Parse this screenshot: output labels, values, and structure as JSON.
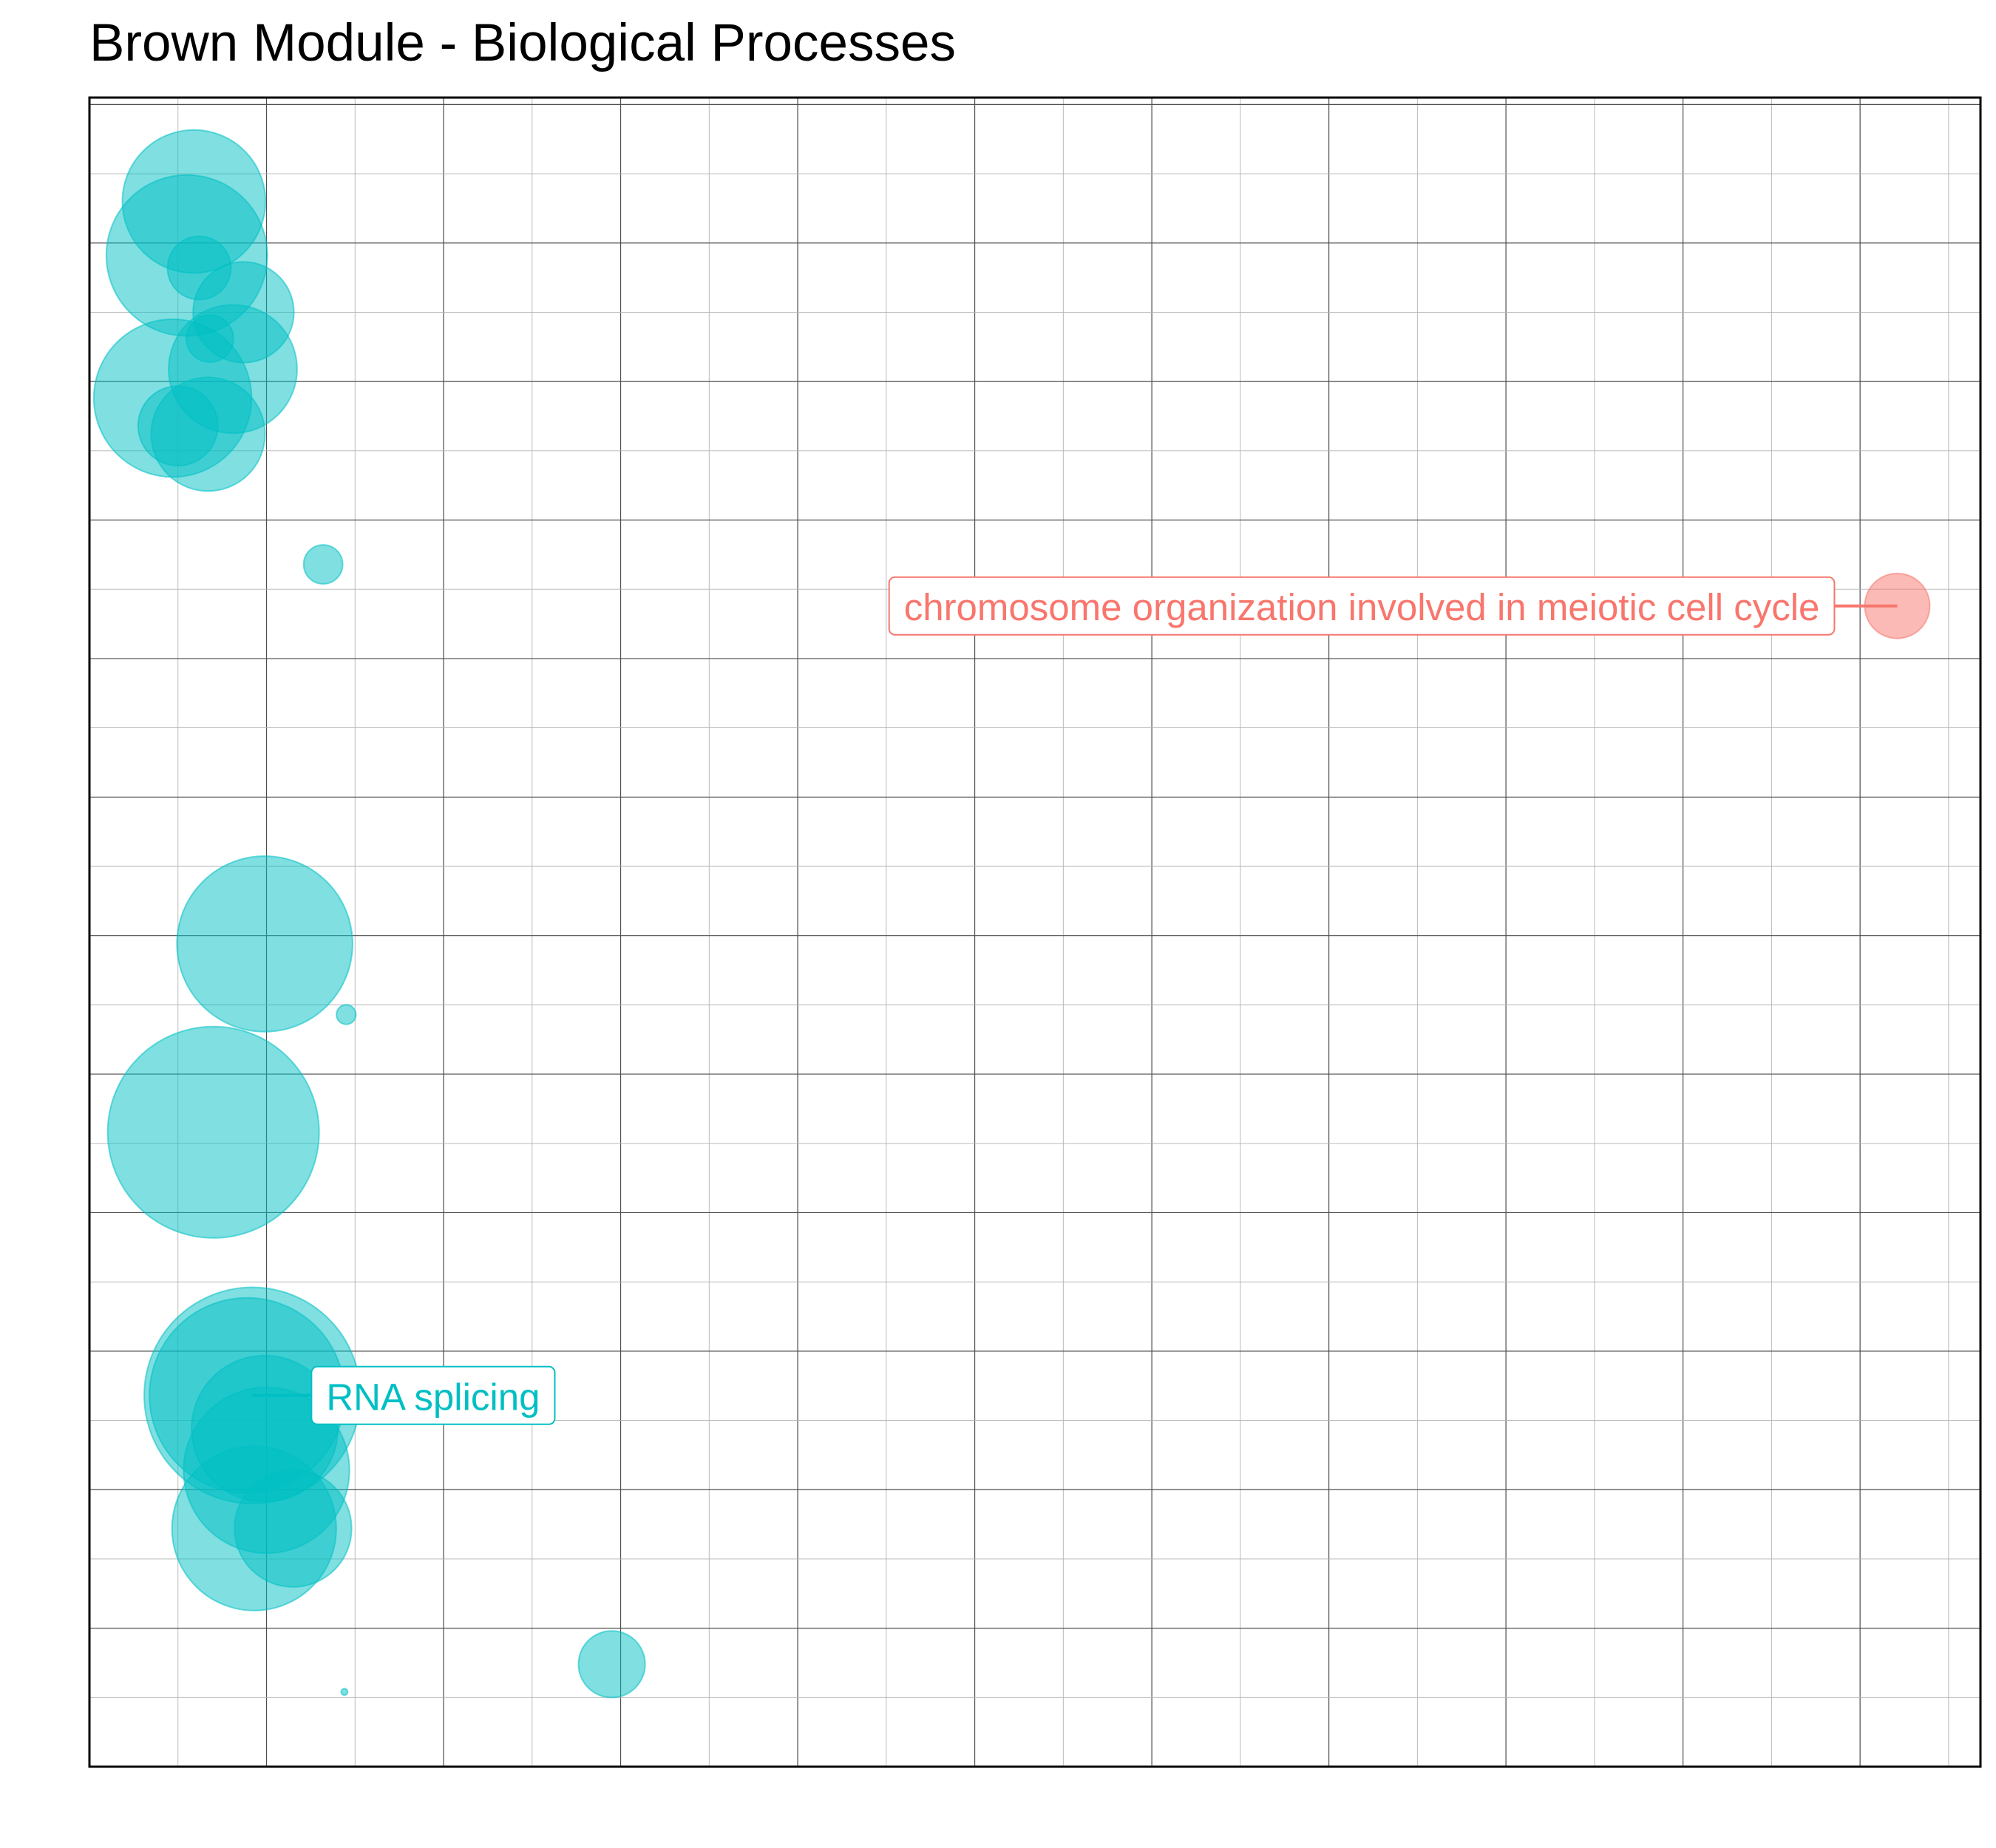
{
  "colors": {
    "background": "#ffffff",
    "frame": "#000000",
    "grid_major": "#4d4d4d",
    "grid_minor": "#b3b3b3",
    "cluster_teal": "#00BFC4",
    "cluster_red": "#F8766D"
  },
  "chart_data": {
    "type": "scatter",
    "title": "Brown Module - Biological Processes",
    "xlabel": "",
    "ylabel": "",
    "xlim": [
      0,
      10.68
    ],
    "ylim": [
      0,
      12.05
    ],
    "grid": true,
    "legend": "none",
    "axes_ticks_shown": false,
    "points": [
      {
        "x": 0.59,
        "y": 11.3,
        "size": 0.88,
        "group": "teal",
        "label": ""
      },
      {
        "x": 0.55,
        "y": 10.91,
        "size": 0.99,
        "group": "teal",
        "label": ""
      },
      {
        "x": 0.62,
        "y": 10.82,
        "size": 0.39,
        "group": "teal",
        "label": ""
      },
      {
        "x": 0.87,
        "y": 10.5,
        "size": 0.62,
        "group": "teal",
        "label": ""
      },
      {
        "x": 0.68,
        "y": 10.31,
        "size": 0.29,
        "group": "teal",
        "label": ""
      },
      {
        "x": 0.81,
        "y": 10.09,
        "size": 0.79,
        "group": "teal",
        "label": ""
      },
      {
        "x": 0.47,
        "y": 9.88,
        "size": 0.97,
        "group": "teal",
        "label": ""
      },
      {
        "x": 0.5,
        "y": 9.68,
        "size": 0.49,
        "group": "teal",
        "label": ""
      },
      {
        "x": 0.67,
        "y": 9.62,
        "size": 0.7,
        "group": "teal",
        "label": ""
      },
      {
        "x": 1.32,
        "y": 8.68,
        "size": 0.24,
        "group": "teal",
        "label": ""
      },
      {
        "x": 10.21,
        "y": 8.38,
        "size": 0.4,
        "group": "red",
        "label": "chromosome organization involved in meiotic cell cycle"
      },
      {
        "x": 0.99,
        "y": 5.94,
        "size": 1.08,
        "group": "teal",
        "label": ""
      },
      {
        "x": 1.45,
        "y": 5.43,
        "size": 0.12,
        "group": "teal",
        "label": ""
      },
      {
        "x": 0.7,
        "y": 4.58,
        "size": 1.3,
        "group": "teal",
        "label": ""
      },
      {
        "x": 0.92,
        "y": 2.68,
        "size": 1.33,
        "group": "teal",
        "label": "RNA splicing"
      },
      {
        "x": 0.89,
        "y": 2.68,
        "size": 1.2,
        "group": "teal",
        "label": ""
      },
      {
        "x": 1.0,
        "y": 2.14,
        "size": 1.02,
        "group": "teal",
        "label": ""
      },
      {
        "x": 0.99,
        "y": 2.44,
        "size": 0.9,
        "group": "teal",
        "label": ""
      },
      {
        "x": 1.15,
        "y": 1.72,
        "size": 0.72,
        "group": "teal",
        "label": ""
      },
      {
        "x": 0.93,
        "y": 1.72,
        "size": 1.01,
        "group": "teal",
        "label": ""
      },
      {
        "x": 2.95,
        "y": 0.74,
        "size": 0.41,
        "group": "teal",
        "label": ""
      },
      {
        "x": 1.44,
        "y": 0.54,
        "size": 0.04,
        "group": "teal",
        "label": ""
      }
    ]
  }
}
